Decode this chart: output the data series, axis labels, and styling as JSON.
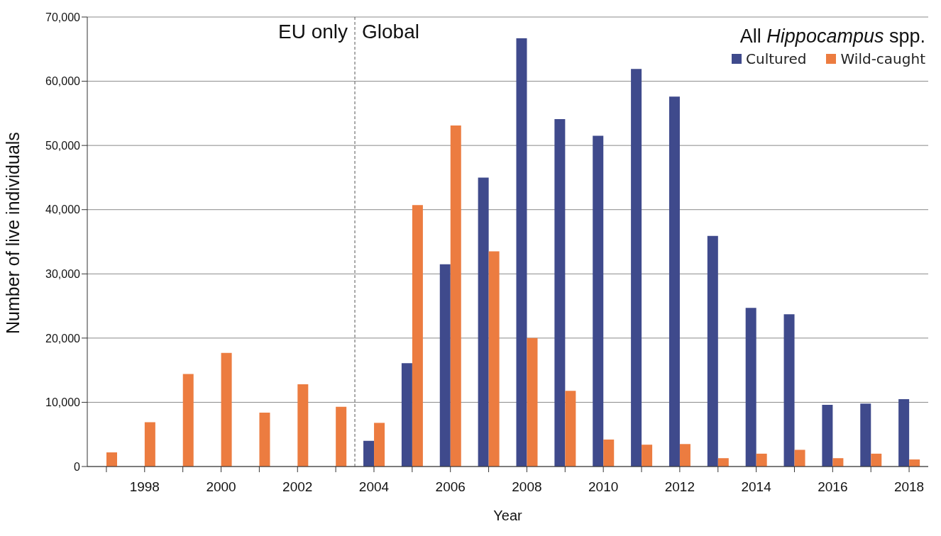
{
  "chart_data": {
    "type": "bar",
    "xlabel": "Year",
    "ylabel": "Number of live individuals",
    "legend_title": "All Hippocampus spp.",
    "x": [
      1997,
      1998,
      1999,
      2000,
      2001,
      2002,
      2003,
      2004,
      2005,
      2006,
      2007,
      2008,
      2009,
      2010,
      2011,
      2012,
      2013,
      2014,
      2015,
      2016,
      2017,
      2018
    ],
    "series": [
      {
        "name": "Cultured",
        "color": "#3f4a8c",
        "values": [
          null,
          null,
          null,
          null,
          null,
          null,
          null,
          4000,
          16100,
          31500,
          45000,
          66700,
          54100,
          51500,
          61900,
          57600,
          35900,
          24700,
          23700,
          9600,
          9800,
          10500
        ]
      },
      {
        "name": "Wild-caught",
        "color": "#ec7c40",
        "values": [
          2200,
          6900,
          14400,
          17700,
          8400,
          12800,
          9300,
          6800,
          40700,
          53100,
          33500,
          20000,
          11800,
          4200,
          3400,
          3500,
          1300,
          2000,
          2600,
          1300,
          2000,
          1100
        ]
      }
    ],
    "xlim": [
      1996.5,
      2018.5
    ],
    "xticks": [
      {
        "value": 1997,
        "label": null
      },
      1998,
      {
        "value": 1999,
        "label": null
      },
      2000,
      {
        "value": 2001,
        "label": null
      },
      2002,
      {
        "value": 2003,
        "label": null
      },
      2004,
      {
        "value": 2005,
        "label": null
      },
      2006,
      {
        "value": 2007,
        "label": null
      },
      2008,
      {
        "value": 2009,
        "label": null
      },
      2010,
      {
        "value": 2011,
        "label": null
      },
      2012,
      {
        "value": 2013,
        "label": null
      },
      2014,
      {
        "value": 2015,
        "label": null
      },
      2016,
      {
        "value": 2017,
        "label": null
      },
      2018
    ],
    "ylim": [
      0,
      70000
    ],
    "yticks": [
      0,
      {
        "value": 10000,
        "label": "10,000"
      },
      {
        "value": 20000,
        "label": "20,000"
      },
      {
        "value": 30000,
        "label": "30,000"
      },
      {
        "value": 40000,
        "label": "40,000"
      },
      {
        "value": 50000,
        "label": "50,000"
      },
      {
        "value": 60000,
        "label": "60,000"
      },
      {
        "value": 70000,
        "label": "70,000"
      }
    ],
    "ref_lines": [
      {
        "axis": "x",
        "value": 2003.5,
        "line_style": "dashed",
        "color": "#555555"
      }
    ],
    "annotations": [
      "EU only",
      "Global"
    ],
    "grid": "y",
    "legend": "top right"
  }
}
